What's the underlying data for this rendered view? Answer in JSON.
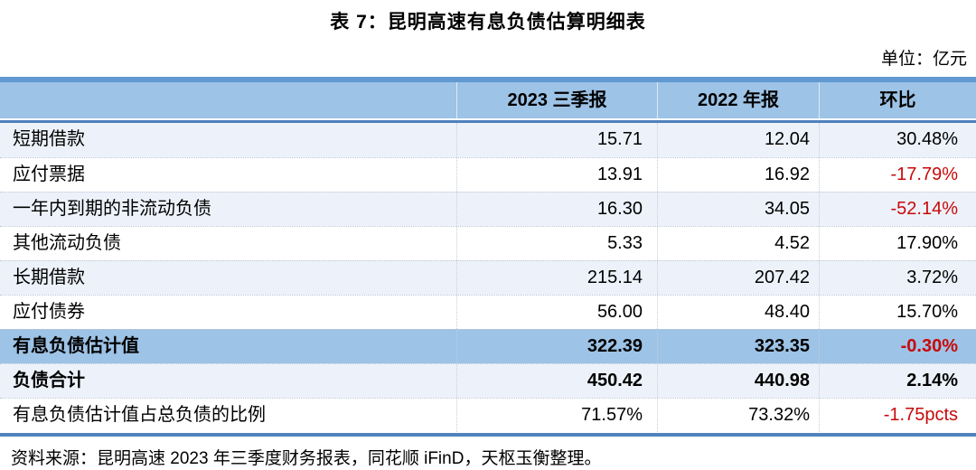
{
  "title": "表 7：昆明高速有息负债估算明细表",
  "unit_label": "单位：亿元",
  "table": {
    "columns": [
      "",
      "2023 三季报",
      "2022 年报",
      "环比"
    ],
    "rows": [
      {
        "label": "短期借款",
        "q3_2023": "15.71",
        "fy_2022": "12.04",
        "qoq": "30.48%"
      },
      {
        "label": "应付票据",
        "q3_2023": "13.91",
        "fy_2022": "16.92",
        "qoq": "-17.79%"
      },
      {
        "label": "一年内到期的非流动负债",
        "q3_2023": "16.30",
        "fy_2022": "34.05",
        "qoq": "-52.14%"
      },
      {
        "label": "其他流动负债",
        "q3_2023": "5.33",
        "fy_2022": "4.52",
        "qoq": "17.90%"
      },
      {
        "label": "长期借款",
        "q3_2023": "215.14",
        "fy_2022": "207.42",
        "qoq": "3.72%"
      },
      {
        "label": "应付债券",
        "q3_2023": "56.00",
        "fy_2022": "48.40",
        "qoq": "15.70%"
      },
      {
        "label": "有息负债估计值",
        "q3_2023": "322.39",
        "fy_2022": "323.35",
        "qoq": "-0.30%"
      },
      {
        "label": "负债合计",
        "q3_2023": "450.42",
        "fy_2022": "440.98",
        "qoq": "2.14%"
      },
      {
        "label": "有息负债估计值占总负债的比例",
        "q3_2023": "71.57%",
        "fy_2022": "73.32%",
        "qoq": "-1.75pcts"
      }
    ]
  },
  "source_note": "资料来源：昆明高速 2023 年三季度财务报表，同花顺 iFinD，天枢玉衡整理。",
  "colors": {
    "header_fill": "#9DC3E6",
    "header_top_band": "#6299D1",
    "accent_rule": "#4F81BD",
    "pale_row": "#EDF2FA",
    "highlight_row": "#9DC3E6",
    "negative_red": "#C80A0A",
    "text": "#000000"
  }
}
